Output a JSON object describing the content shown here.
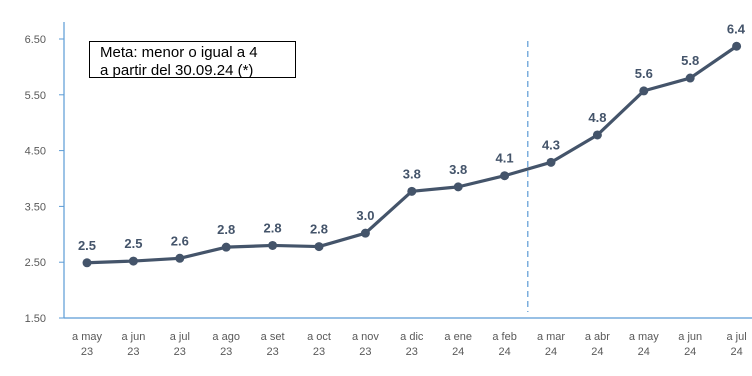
{
  "chart_data": {
    "type": "line",
    "title": "",
    "xlabel": "",
    "ylabel": "",
    "categories": [
      [
        "a may",
        "23"
      ],
      [
        "a jun",
        "23"
      ],
      [
        "a jul",
        "23"
      ],
      [
        "a ago",
        "23"
      ],
      [
        "a set",
        "23"
      ],
      [
        "a oct",
        "23"
      ],
      [
        "a nov",
        "23"
      ],
      [
        "a dic",
        "23"
      ],
      [
        "a ene",
        "24"
      ],
      [
        "a feb",
        "24"
      ],
      [
        "a mar",
        "24"
      ],
      [
        "a abr",
        "24"
      ],
      [
        "a may",
        "24"
      ],
      [
        "a jun",
        "24"
      ],
      [
        "a jul",
        "24"
      ]
    ],
    "values": [
      2.49,
      2.52,
      2.57,
      2.77,
      2.8,
      2.78,
      3.02,
      3.77,
      3.85,
      4.05,
      4.29,
      4.78,
      5.57,
      5.8,
      6.37
    ],
    "data_labels": [
      "2.5",
      "2.5",
      "2.6",
      "2.8",
      "2.8",
      "2.8",
      "3.0",
      "3.8",
      "3.8",
      "4.1",
      "4.3",
      "4.8",
      "5.6",
      "5.8",
      "6.4"
    ],
    "ylim": [
      1.5,
      6.5
    ],
    "yticks": [
      "6.50",
      "5.50",
      "4.50",
      "3.50",
      "2.50",
      "1.50"
    ],
    "ytick_values": [
      6.5,
      5.5,
      4.5,
      3.5,
      2.5,
      1.5
    ],
    "grid": false,
    "reference_line": {
      "type": "vertical-dashed",
      "between_categories": [
        9,
        10
      ]
    },
    "annotation": {
      "lines": [
        "Meta: menor o igual a 4",
        "a partir del 30.09.24 (*)"
      ]
    },
    "colors": {
      "line": "#44546a",
      "marker": "#44546a",
      "axis": "#5b9bd5",
      "reference_line": "#5b9bd5",
      "tick_label": "#595959",
      "data_label": "#44546a"
    }
  }
}
